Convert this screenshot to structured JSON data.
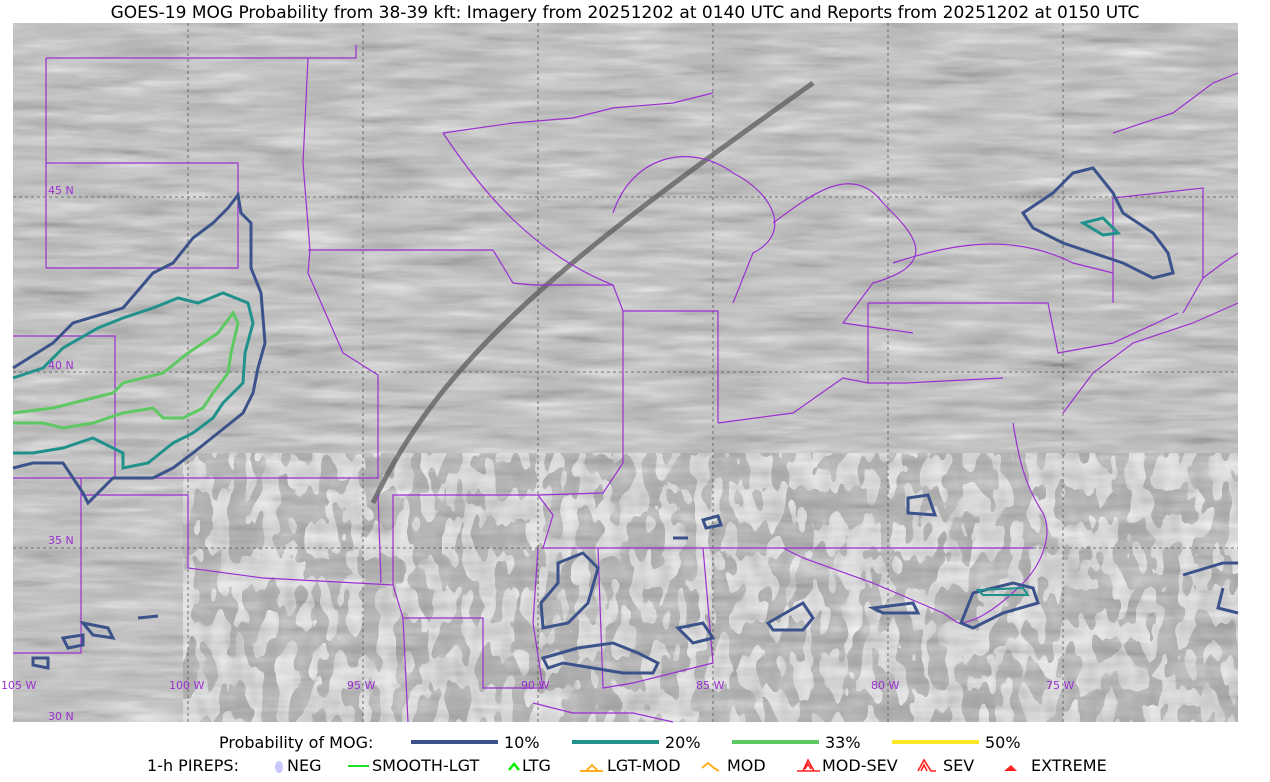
{
  "title": "GOES-19 MOG Probability from 38-39 kft: Imagery from 20251202 at 0140 UTC and Reports from 20251202 at 0150 UTC",
  "map": {
    "lon_labels": [
      "105 W",
      "100 W",
      "95 W",
      "90 W",
      "85 W",
      "80 W",
      "75 W"
    ],
    "lat_labels": [
      "45 N",
      "40 N",
      "35 N",
      "30 N"
    ],
    "border_color": "#9b30d0",
    "background": "grayscale satellite imagery"
  },
  "legend": {
    "prob_label": "Probability of MOG:",
    "prob_items": [
      {
        "label": "10%",
        "color": "#3b528b"
      },
      {
        "label": "20%",
        "color": "#21918c"
      },
      {
        "label": "33%",
        "color": "#5ec962"
      },
      {
        "label": "50%",
        "color": "#fde725"
      }
    ],
    "pirep_label": "1-h PIREPS:",
    "pirep_items": [
      {
        "label": "NEG",
        "icon": "neg-icon",
        "color": "#c8c8ff"
      },
      {
        "label": "SMOOTH-LGT",
        "icon": "line-icon",
        "color": "#22dd22"
      },
      {
        "label": "LTG",
        "icon": "caret-icon",
        "color": "#00ee00"
      },
      {
        "label": "LGT-MOD",
        "icon": "caret-bar-icon",
        "color": "#ffb020"
      },
      {
        "label": "MOD",
        "icon": "caret-icon",
        "color": "#ffb020"
      },
      {
        "label": "MOD-SEV",
        "icon": "double-caret-bar-icon",
        "color": "#ff2020"
      },
      {
        "label": "SEV",
        "icon": "double-caret-icon",
        "color": "#ff2020"
      },
      {
        "label": "EXTREME",
        "icon": "filled-triangle-icon",
        "color": "#ff2020"
      }
    ]
  }
}
